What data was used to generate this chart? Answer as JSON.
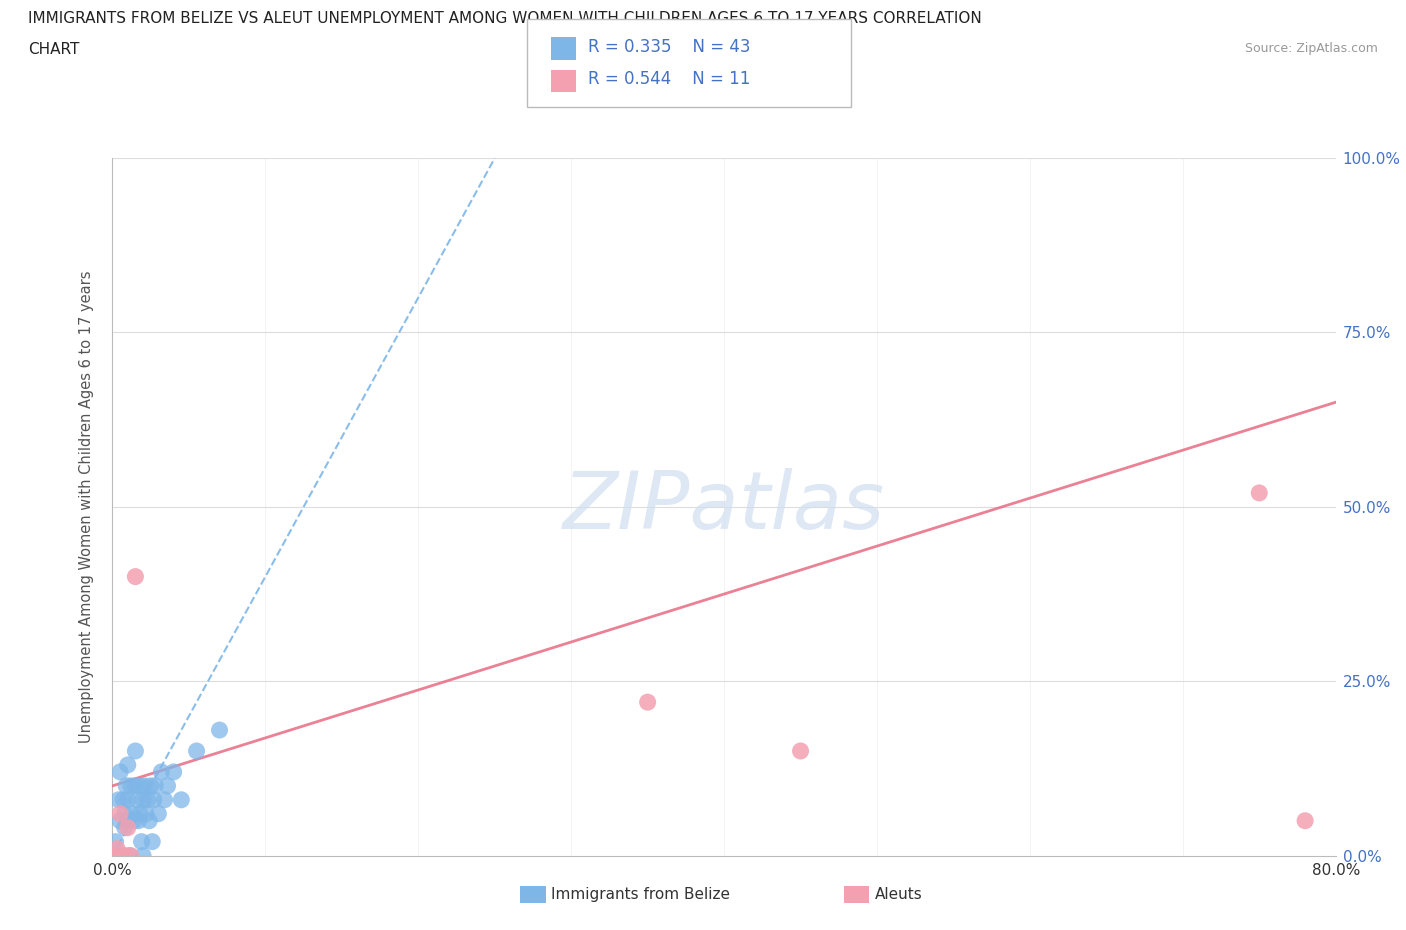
{
  "title_line1": "IMMIGRANTS FROM BELIZE VS ALEUT UNEMPLOYMENT AMONG WOMEN WITH CHILDREN AGES 6 TO 17 YEARS CORRELATION",
  "title_line2": "CHART",
  "source": "Source: ZipAtlas.com",
  "ylabel": "Unemployment Among Women with Children Ages 6 to 17 years",
  "xlim": [
    0.0,
    0.8
  ],
  "ylim": [
    0.0,
    1.0
  ],
  "belize_R": 0.335,
  "belize_N": 43,
  "aleut_R": 0.544,
  "aleut_N": 11,
  "belize_color": "#7EB6E8",
  "aleut_color": "#F4A0B0",
  "belize_line_color": "#7EB6E8",
  "aleut_line_color": "#E8738A",
  "watermark_color": "#D0DFF0",
  "belize_x": [
    0.0,
    0.002,
    0.003,
    0.004,
    0.005,
    0.005,
    0.006,
    0.007,
    0.008,
    0.008,
    0.009,
    0.01,
    0.01,
    0.01,
    0.011,
    0.012,
    0.013,
    0.014,
    0.015,
    0.015,
    0.016,
    0.017,
    0.018,
    0.018,
    0.019,
    0.02,
    0.02,
    0.021,
    0.022,
    0.023,
    0.024,
    0.025,
    0.026,
    0.027,
    0.028,
    0.03,
    0.032,
    0.034,
    0.036,
    0.04,
    0.045,
    0.055,
    0.07
  ],
  "belize_y": [
    0.0,
    0.02,
    0.0,
    0.08,
    0.05,
    0.12,
    0.0,
    0.08,
    0.06,
    0.04,
    0.1,
    0.05,
    0.13,
    0.08,
    0.0,
    0.1,
    0.06,
    0.05,
    0.1,
    0.15,
    0.08,
    0.05,
    0.06,
    0.1,
    0.02,
    0.08,
    0.0,
    0.1,
    0.06,
    0.08,
    0.05,
    0.1,
    0.02,
    0.08,
    0.1,
    0.06,
    0.12,
    0.08,
    0.1,
    0.12,
    0.08,
    0.15,
    0.18
  ],
  "aleut_x": [
    0.0,
    0.003,
    0.005,
    0.008,
    0.01,
    0.012,
    0.015,
    0.35,
    0.45,
    0.75,
    0.78
  ],
  "aleut_y": [
    0.0,
    0.01,
    0.06,
    0.0,
    0.04,
    0.0,
    0.4,
    0.22,
    0.15,
    0.52,
    0.05
  ],
  "belize_trend_x": [
    0.0,
    0.25
  ],
  "belize_trend_y": [
    0.0,
    1.0
  ],
  "aleut_trend_x": [
    0.0,
    0.8
  ],
  "aleut_trend_y": [
    0.1,
    0.65
  ],
  "grid_color": "#DDDDDD",
  "tick_color": "#4472C4",
  "label_color": "#555555"
}
